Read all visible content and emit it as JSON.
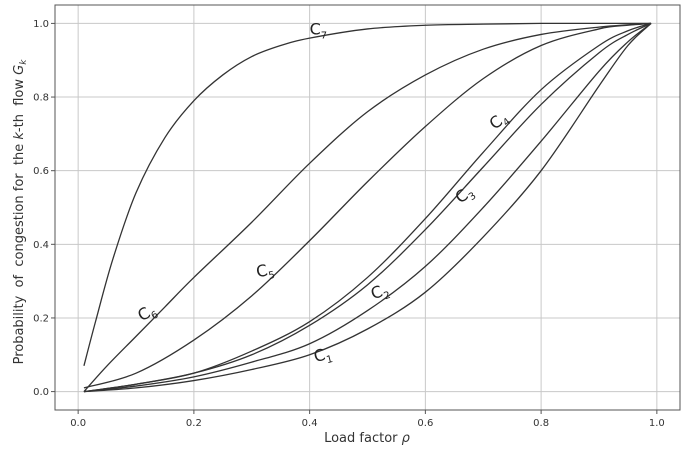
{
  "chart_data": {
    "type": "line",
    "xlabel": "Load factor",
    "xlabel_symbol": "ρ",
    "ylabel": "Probability  of  congestion for  the",
    "ylabel_k": "k",
    "ylabel_rest": "-th  flow",
    "ylabel_symbol": "G",
    "ylabel_sub": "k",
    "xlim": [
      -0.04,
      1.04
    ],
    "ylim": [
      -0.05,
      1.05
    ],
    "xticks": [
      0.0,
      0.2,
      0.4,
      0.6,
      0.8,
      1.0
    ],
    "yticks": [
      0.0,
      0.2,
      0.4,
      0.6,
      0.8,
      1.0
    ],
    "tick_labels_x": [
      "0.0",
      "0.2",
      "0.4",
      "0.6",
      "0.8",
      "1.0"
    ],
    "tick_labels_y": [
      "0.0",
      "0.2",
      "0.4",
      "0.6",
      "0.8",
      "1.0"
    ],
    "grid": true,
    "line_color": "#333333",
    "grid_color": "#c8c8c8",
    "series": [
      {
        "name": "C1",
        "label": "C",
        "sub": "1",
        "label_at": [
          0.41,
          0.08
        ],
        "label_rot": -14,
        "x": [
          0.01,
          0.1,
          0.2,
          0.3,
          0.4,
          0.5,
          0.6,
          0.7,
          0.8,
          0.9,
          0.95,
          0.99
        ],
        "y": [
          0.0,
          0.01,
          0.03,
          0.06,
          0.1,
          0.17,
          0.27,
          0.42,
          0.6,
          0.83,
          0.94,
          1.0
        ]
      },
      {
        "name": "C2",
        "label": "C",
        "sub": "2",
        "label_at": [
          0.51,
          0.25
        ],
        "label_rot": -20,
        "x": [
          0.01,
          0.1,
          0.2,
          0.3,
          0.4,
          0.5,
          0.6,
          0.7,
          0.8,
          0.9,
          0.95,
          0.99
        ],
        "y": [
          0.0,
          0.015,
          0.04,
          0.08,
          0.13,
          0.22,
          0.34,
          0.5,
          0.68,
          0.87,
          0.95,
          1.0
        ]
      },
      {
        "name": "C3",
        "label": "C",
        "sub": "3",
        "label_at": [
          0.66,
          0.51
        ],
        "label_rot": -35,
        "x": [
          0.01,
          0.1,
          0.2,
          0.3,
          0.4,
          0.5,
          0.6,
          0.7,
          0.8,
          0.9,
          0.95,
          0.99
        ],
        "y": [
          0.0,
          0.02,
          0.05,
          0.1,
          0.18,
          0.29,
          0.44,
          0.61,
          0.78,
          0.92,
          0.97,
          1.0
        ]
      },
      {
        "name": "C4",
        "label": "C",
        "sub": "4",
        "label_at": [
          0.72,
          0.71
        ],
        "label_rot": -38,
        "x": [
          0.01,
          0.1,
          0.2,
          0.3,
          0.4,
          0.5,
          0.6,
          0.7,
          0.8,
          0.9,
          0.95,
          0.99
        ],
        "y": [
          0.0,
          0.02,
          0.05,
          0.11,
          0.19,
          0.31,
          0.47,
          0.65,
          0.82,
          0.94,
          0.98,
          1.0
        ]
      },
      {
        "name": "C5",
        "label": "C",
        "sub": "5",
        "label_at": [
          0.31,
          0.31
        ],
        "label_rot": -12,
        "x": [
          0.01,
          0.1,
          0.2,
          0.3,
          0.4,
          0.5,
          0.6,
          0.7,
          0.8,
          0.9,
          0.95,
          0.99
        ],
        "y": [
          0.01,
          0.05,
          0.14,
          0.26,
          0.41,
          0.57,
          0.72,
          0.85,
          0.94,
          0.985,
          0.995,
          1.0
        ]
      },
      {
        "name": "C6",
        "label": "C",
        "sub": "6",
        "label_at": [
          0.11,
          0.19
        ],
        "label_rot": -30,
        "x": [
          0.01,
          0.05,
          0.1,
          0.15,
          0.2,
          0.3,
          0.4,
          0.5,
          0.6,
          0.7,
          0.8,
          0.9,
          0.99
        ],
        "y": [
          0.0,
          0.07,
          0.15,
          0.23,
          0.31,
          0.46,
          0.62,
          0.76,
          0.86,
          0.93,
          0.97,
          0.99,
          1.0
        ]
      },
      {
        "name": "C7",
        "label": "C",
        "sub": "7",
        "label_at": [
          0.4,
          0.97
        ],
        "label_rot": 0,
        "x": [
          0.01,
          0.03,
          0.06,
          0.1,
          0.15,
          0.2,
          0.25,
          0.3,
          0.35,
          0.4,
          0.5,
          0.6,
          0.7,
          0.8,
          0.9,
          0.99
        ],
        "y": [
          0.07,
          0.19,
          0.36,
          0.54,
          0.69,
          0.79,
          0.86,
          0.91,
          0.94,
          0.96,
          0.985,
          0.995,
          0.998,
          1.0,
          1.0,
          1.0
        ]
      }
    ]
  }
}
